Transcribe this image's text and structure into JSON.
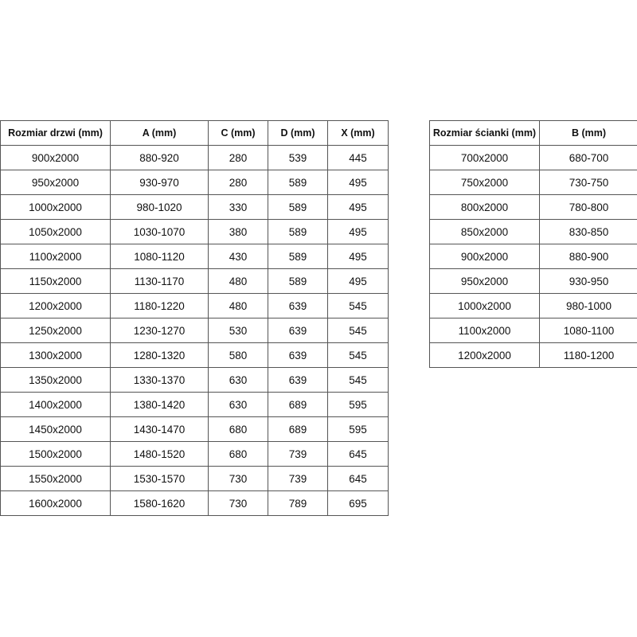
{
  "doors_table": {
    "headers": [
      "Rozmiar drzwi (mm)",
      "A (mm)",
      "C (mm)",
      "D (mm)",
      "X (mm)"
    ],
    "rows": [
      [
        "900x2000",
        "880-920",
        "280",
        "539",
        "445"
      ],
      [
        "950x2000",
        "930-970",
        "280",
        "589",
        "495"
      ],
      [
        "1000x2000",
        "980-1020",
        "330",
        "589",
        "495"
      ],
      [
        "1050x2000",
        "1030-1070",
        "380",
        "589",
        "495"
      ],
      [
        "1100x2000",
        "1080-1120",
        "430",
        "589",
        "495"
      ],
      [
        "1150x2000",
        "1130-1170",
        "480",
        "589",
        "495"
      ],
      [
        "1200x2000",
        "1180-1220",
        "480",
        "639",
        "545"
      ],
      [
        "1250x2000",
        "1230-1270",
        "530",
        "639",
        "545"
      ],
      [
        "1300x2000",
        "1280-1320",
        "580",
        "639",
        "545"
      ],
      [
        "1350x2000",
        "1330-1370",
        "630",
        "639",
        "545"
      ],
      [
        "1400x2000",
        "1380-1420",
        "630",
        "689",
        "595"
      ],
      [
        "1450x2000",
        "1430-1470",
        "680",
        "689",
        "595"
      ],
      [
        "1500x2000",
        "1480-1520",
        "680",
        "739",
        "645"
      ],
      [
        "1550x2000",
        "1530-1570",
        "730",
        "739",
        "645"
      ],
      [
        "1600x2000",
        "1580-1620",
        "730",
        "789",
        "695"
      ]
    ]
  },
  "wall_table": {
    "headers": [
      "Rozmiar ścianki (mm)",
      "B (mm)"
    ],
    "rows": [
      [
        "700x2000",
        "680-700"
      ],
      [
        "750x2000",
        "730-750"
      ],
      [
        "800x2000",
        "780-800"
      ],
      [
        "850x2000",
        "830-850"
      ],
      [
        "900x2000",
        "880-900"
      ],
      [
        "950x2000",
        "930-950"
      ],
      [
        "1000x2000",
        "980-1000"
      ],
      [
        "1100x2000",
        "1080-1100"
      ],
      [
        "1200x2000",
        "1180-1200"
      ]
    ]
  }
}
